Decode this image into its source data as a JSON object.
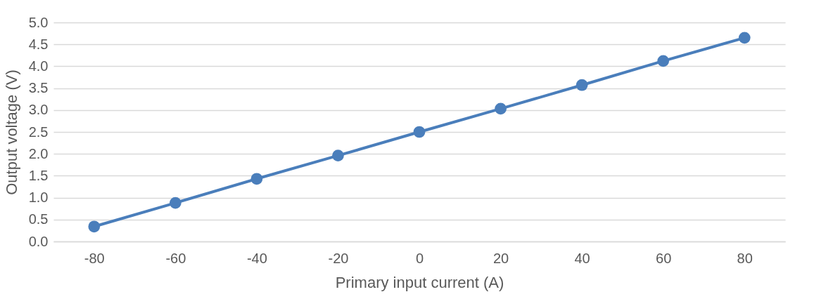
{
  "chart_data": {
    "type": "line",
    "xlabel": "Primary input current (A)",
    "ylabel": "Output voltage (V)",
    "categories": [
      "-80",
      "-60",
      "-40",
      "-20",
      "0",
      "20",
      "40",
      "60",
      "80"
    ],
    "series": [
      {
        "color": "#4a7ebb",
        "values": [
          0.34,
          0.88,
          1.43,
          1.96,
          2.5,
          3.03,
          3.57,
          4.12,
          4.65
        ]
      }
    ],
    "ylim": [
      0,
      5
    ],
    "yticks": [
      {
        "value": 0,
        "label": "0.0"
      },
      {
        "value": 0.5,
        "label": "0.5"
      },
      {
        "value": 1,
        "label": "1.0"
      },
      {
        "value": 1.5,
        "label": "1.5"
      },
      {
        "value": 2,
        "label": "2.0"
      },
      {
        "value": 2.5,
        "label": "2.5"
      },
      {
        "value": 3,
        "label": "3.0"
      },
      {
        "value": 3.5,
        "label": "3.5"
      },
      {
        "value": 4,
        "label": "4.0"
      },
      {
        "value": 4.5,
        "label": "4.5"
      },
      {
        "value": 5,
        "label": "5.0"
      }
    ],
    "grid": "y",
    "legend": false,
    "marker": "circle",
    "line_style": "solid"
  }
}
